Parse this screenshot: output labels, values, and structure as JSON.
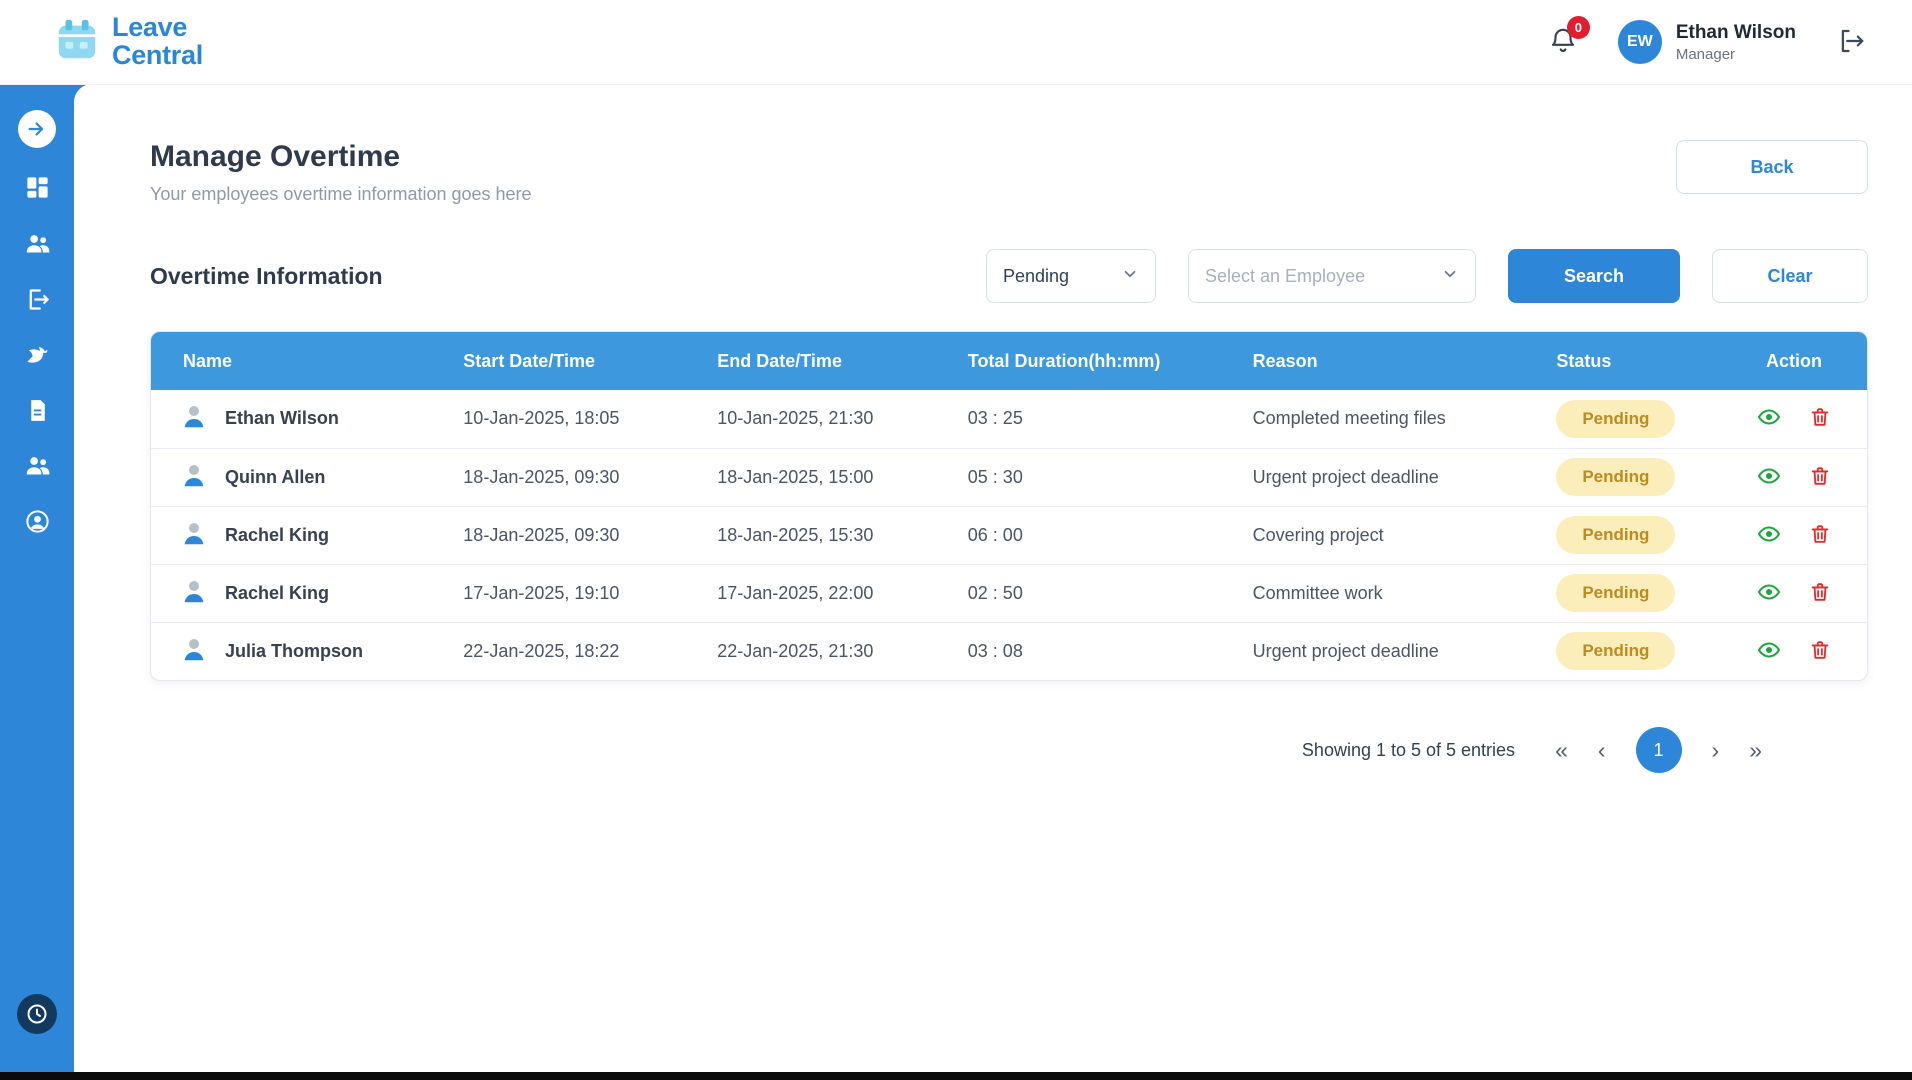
{
  "brand": {
    "line1": "Leave",
    "line2": "Central"
  },
  "header": {
    "notification_count": "0",
    "user": {
      "initials": "EW",
      "name": "Ethan Wilson",
      "role": "Manager"
    }
  },
  "sidebar": {
    "icons": [
      "expand-arrow-icon",
      "dashboard-icon",
      "employees-icon",
      "leave-exit-icon",
      "holidays-dove-icon",
      "reports-icon",
      "teams-icon",
      "profile-icon",
      "time-history-icon"
    ]
  },
  "page": {
    "title": "Manage Overtime",
    "subtitle": "Your employees overtime information goes here",
    "back_label": "Back"
  },
  "filters": {
    "section_title": "Overtime Information",
    "status_value": "Pending",
    "employee_placeholder": "Select an Employee",
    "search_label": "Search",
    "clear_label": "Clear"
  },
  "table": {
    "columns": [
      "Name",
      "Start Date/Time",
      "End Date/Time",
      "Total Duration(hh:mm)",
      "Reason",
      "Status",
      "Action"
    ],
    "rows": [
      {
        "name": "Ethan Wilson",
        "start": "10-Jan-2025, 18:05",
        "end": "10-Jan-2025, 21:30",
        "duration": "03 : 25",
        "reason": "Completed meeting files",
        "status": "Pending"
      },
      {
        "name": "Quinn Allen",
        "start": "18-Jan-2025, 09:30",
        "end": "18-Jan-2025, 15:00",
        "duration": "05 : 30",
        "reason": "Urgent project deadline",
        "status": "Pending"
      },
      {
        "name": "Rachel King",
        "start": "18-Jan-2025, 09:30",
        "end": "18-Jan-2025, 15:30",
        "duration": "06 : 00",
        "reason": "Covering project",
        "status": "Pending"
      },
      {
        "name": "Rachel King",
        "start": "17-Jan-2025, 19:10",
        "end": "17-Jan-2025, 22:00",
        "duration": "02 : 50",
        "reason": "Committee work",
        "status": "Pending"
      },
      {
        "name": "Julia Thompson",
        "start": "22-Jan-2025, 18:22",
        "end": "22-Jan-2025, 21:30",
        "duration": "03 : 08",
        "reason": "Urgent project deadline",
        "status": "Pending"
      }
    ]
  },
  "pagination": {
    "summary": "Showing 1 to 5 of 5 entries",
    "current_page": "1",
    "controls": [
      "first-page-icon",
      "prev-page-icon",
      "next-page-icon",
      "last-page-icon"
    ]
  },
  "colors": {
    "accent": "#2e86d9",
    "table_header": "#3d98dd",
    "pending_bg": "#fceebb",
    "pending_text": "#bd8b20",
    "view_icon": "#1da53f",
    "delete_icon": "#e02b2b",
    "badge": "#e11d2e"
  }
}
